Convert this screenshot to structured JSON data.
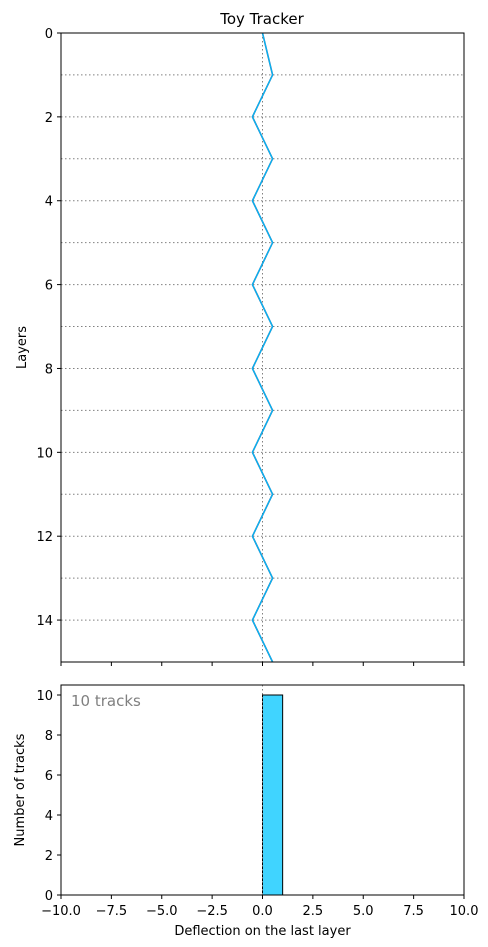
{
  "chart_data": [
    {
      "type": "line",
      "title": "Toy Tracker",
      "xlabel": "",
      "ylabel": "Layers",
      "xlim": [
        -10,
        10
      ],
      "ylim": [
        15,
        0
      ],
      "y_inverted": true,
      "xticks": [
        -10,
        -7.5,
        -5,
        -2.5,
        0,
        2.5,
        5,
        7.5,
        10
      ],
      "xtick_labels_visible": false,
      "yticks": [
        0,
        2,
        4,
        6,
        8,
        10,
        12,
        14
      ],
      "ytick_labels": [
        "0",
        "2",
        "4",
        "6",
        "8",
        "10",
        "12",
        "14"
      ],
      "layer_lines": [
        1,
        2,
        3,
        4,
        5,
        6,
        7,
        8,
        9,
        10,
        11,
        12,
        13,
        14
      ],
      "layer_line_style": "dotted gray horizontal",
      "center_line_x": 0,
      "series": [
        {
          "color": "#1f77b4",
          "points": [
            [
              0,
              0
            ],
            [
              0.5,
              1
            ],
            [
              -0.5,
              2
            ],
            [
              0.5,
              3
            ],
            [
              -0.5,
              4
            ],
            [
              0.5,
              5
            ],
            [
              -0.5,
              6
            ],
            [
              0.5,
              7
            ],
            [
              -0.5,
              8
            ],
            [
              0.5,
              9
            ],
            [
              -0.5,
              10
            ],
            [
              0.5,
              11
            ],
            [
              -0.5,
              12
            ],
            [
              0.5,
              13
            ],
            [
              -0.5,
              14
            ],
            [
              0.5,
              15
            ]
          ]
        },
        {
          "color": "#00bfff",
          "points": [
            [
              0,
              0
            ],
            [
              0.5,
              1
            ],
            [
              -0.5,
              2
            ],
            [
              0.5,
              3
            ],
            [
              -0.5,
              4
            ],
            [
              0.5,
              5
            ],
            [
              -0.5,
              6
            ],
            [
              0.5,
              7
            ],
            [
              -0.5,
              8
            ],
            [
              0.5,
              9
            ],
            [
              -0.5,
              10
            ],
            [
              0.5,
              11
            ],
            [
              -0.5,
              12
            ],
            [
              0.5,
              13
            ],
            [
              -0.5,
              14
            ],
            [
              0.5,
              15
            ]
          ]
        }
      ],
      "grid": false
    },
    {
      "type": "bar",
      "xlabel": "Deflection on the last layer",
      "ylabel": "Number of tracks",
      "xlim": [
        -10,
        10
      ],
      "ylim": [
        0,
        10.5
      ],
      "xticks": [
        -10,
        -7.5,
        -5,
        -2.5,
        0,
        2.5,
        5,
        7.5,
        10
      ],
      "xtick_labels": [
        "−10.0",
        "−7.5",
        "−5.0",
        "−2.5",
        "0.0",
        "2.5",
        "5.0",
        "7.5",
        "10.0"
      ],
      "yticks": [
        0,
        2,
        4,
        6,
        8,
        10
      ],
      "ytick_labels": [
        "0",
        "2",
        "4",
        "6",
        "8",
        "10"
      ],
      "bins": [
        {
          "x0": 0,
          "x1": 1,
          "count": 10
        }
      ],
      "bar_color": "#40d4ff",
      "center_line_x": 0,
      "annotation": "10 tracks",
      "grid": false
    }
  ]
}
